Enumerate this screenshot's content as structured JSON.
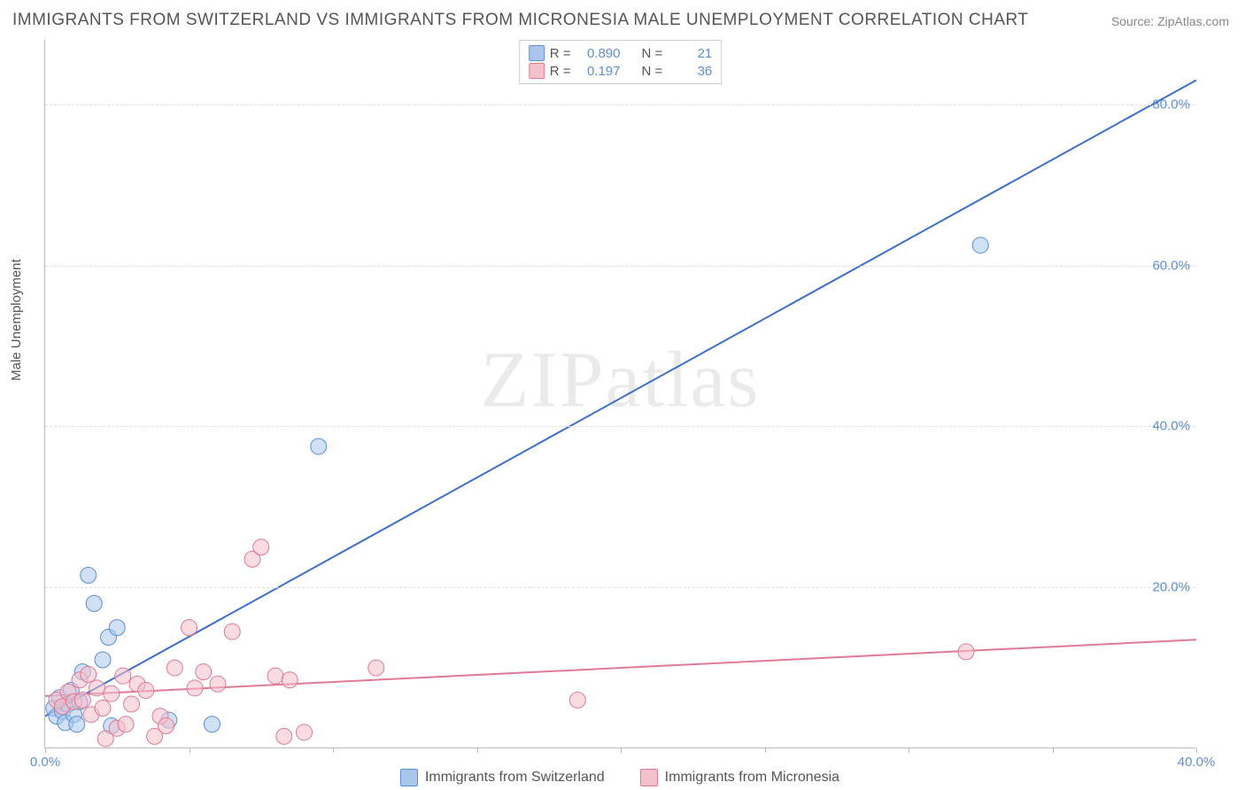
{
  "title": "IMMIGRANTS FROM SWITZERLAND VS IMMIGRANTS FROM MICRONESIA MALE UNEMPLOYMENT CORRELATION CHART",
  "source": "Source: ZipAtlas.com",
  "ylabel": "Male Unemployment",
  "watermark": "ZIPatlas",
  "chart": {
    "type": "scatter",
    "xlim": [
      0,
      40
    ],
    "ylim": [
      0,
      88
    ],
    "xticks": [
      0,
      5,
      10,
      15,
      20,
      25,
      30,
      35,
      40
    ],
    "xticklabels": [
      "0.0%",
      "",
      "",
      "",
      "",
      "",
      "",
      "",
      "40.0%"
    ],
    "yticks": [
      20,
      40,
      60,
      80
    ],
    "yticklabels": [
      "20.0%",
      "40.0%",
      "60.0%",
      "80.0%"
    ],
    "grid_color": "#dddddd",
    "axis_color": "#bbbbbb",
    "tick_label_color": "#5b8fd6",
    "marker_radius": 9,
    "marker_opacity": 0.55,
    "series": [
      {
        "name": "Immigrants from Switzerland",
        "color_fill": "#a9c7ec",
        "color_stroke": "#5b8fd6",
        "line_color": "#3d6fc7",
        "line_width": 2,
        "R": "0.890",
        "N": "21",
        "trend": {
          "x1": 0,
          "y1": 4,
          "x2": 40,
          "y2": 83
        },
        "points": [
          [
            0.3,
            5.0
          ],
          [
            0.4,
            4.0
          ],
          [
            0.5,
            6.3
          ],
          [
            0.6,
            4.6
          ],
          [
            0.7,
            3.2
          ],
          [
            0.8,
            5.5
          ],
          [
            0.9,
            7.2
          ],
          [
            1.0,
            4.2
          ],
          [
            1.1,
            3.0
          ],
          [
            1.2,
            5.8
          ],
          [
            1.3,
            9.5
          ],
          [
            1.5,
            21.5
          ],
          [
            1.7,
            18.0
          ],
          [
            2.0,
            11.0
          ],
          [
            2.2,
            13.8
          ],
          [
            2.3,
            2.8
          ],
          [
            2.5,
            15.0
          ],
          [
            4.3,
            3.5
          ],
          [
            5.8,
            3.0
          ],
          [
            9.5,
            37.5
          ],
          [
            32.5,
            62.5
          ]
        ]
      },
      {
        "name": "Immigrants from Micronesia",
        "color_fill": "#f4c0cb",
        "color_stroke": "#e07a94",
        "line_color": "#e07a94",
        "line_width": 2,
        "R": "0.197",
        "N": "36",
        "trend": {
          "x1": 0,
          "y1": 6.5,
          "x2": 40,
          "y2": 13.5
        },
        "points": [
          [
            0.4,
            6.0
          ],
          [
            0.6,
            5.2
          ],
          [
            0.8,
            7.0
          ],
          [
            1.0,
            5.8
          ],
          [
            1.2,
            8.5
          ],
          [
            1.3,
            6.0
          ],
          [
            1.5,
            9.2
          ],
          [
            1.6,
            4.2
          ],
          [
            1.8,
            7.5
          ],
          [
            2.0,
            5.0
          ],
          [
            2.1,
            1.2
          ],
          [
            2.3,
            6.8
          ],
          [
            2.5,
            2.5
          ],
          [
            2.7,
            9.0
          ],
          [
            2.8,
            3.0
          ],
          [
            3.0,
            5.5
          ],
          [
            3.2,
            8.0
          ],
          [
            3.5,
            7.2
          ],
          [
            3.8,
            1.5
          ],
          [
            4.0,
            4.0
          ],
          [
            4.2,
            2.8
          ],
          [
            4.5,
            10.0
          ],
          [
            5.0,
            15.0
          ],
          [
            5.2,
            7.5
          ],
          [
            5.5,
            9.5
          ],
          [
            6.0,
            8.0
          ],
          [
            6.5,
            14.5
          ],
          [
            7.2,
            23.5
          ],
          [
            7.5,
            25.0
          ],
          [
            8.0,
            9.0
          ],
          [
            8.3,
            1.5
          ],
          [
            8.5,
            8.5
          ],
          [
            9.0,
            2.0
          ],
          [
            11.5,
            10.0
          ],
          [
            18.5,
            6.0
          ],
          [
            32.0,
            12.0
          ]
        ]
      }
    ]
  },
  "legend_top": {
    "r_label": "R =",
    "n_label": "N ="
  }
}
